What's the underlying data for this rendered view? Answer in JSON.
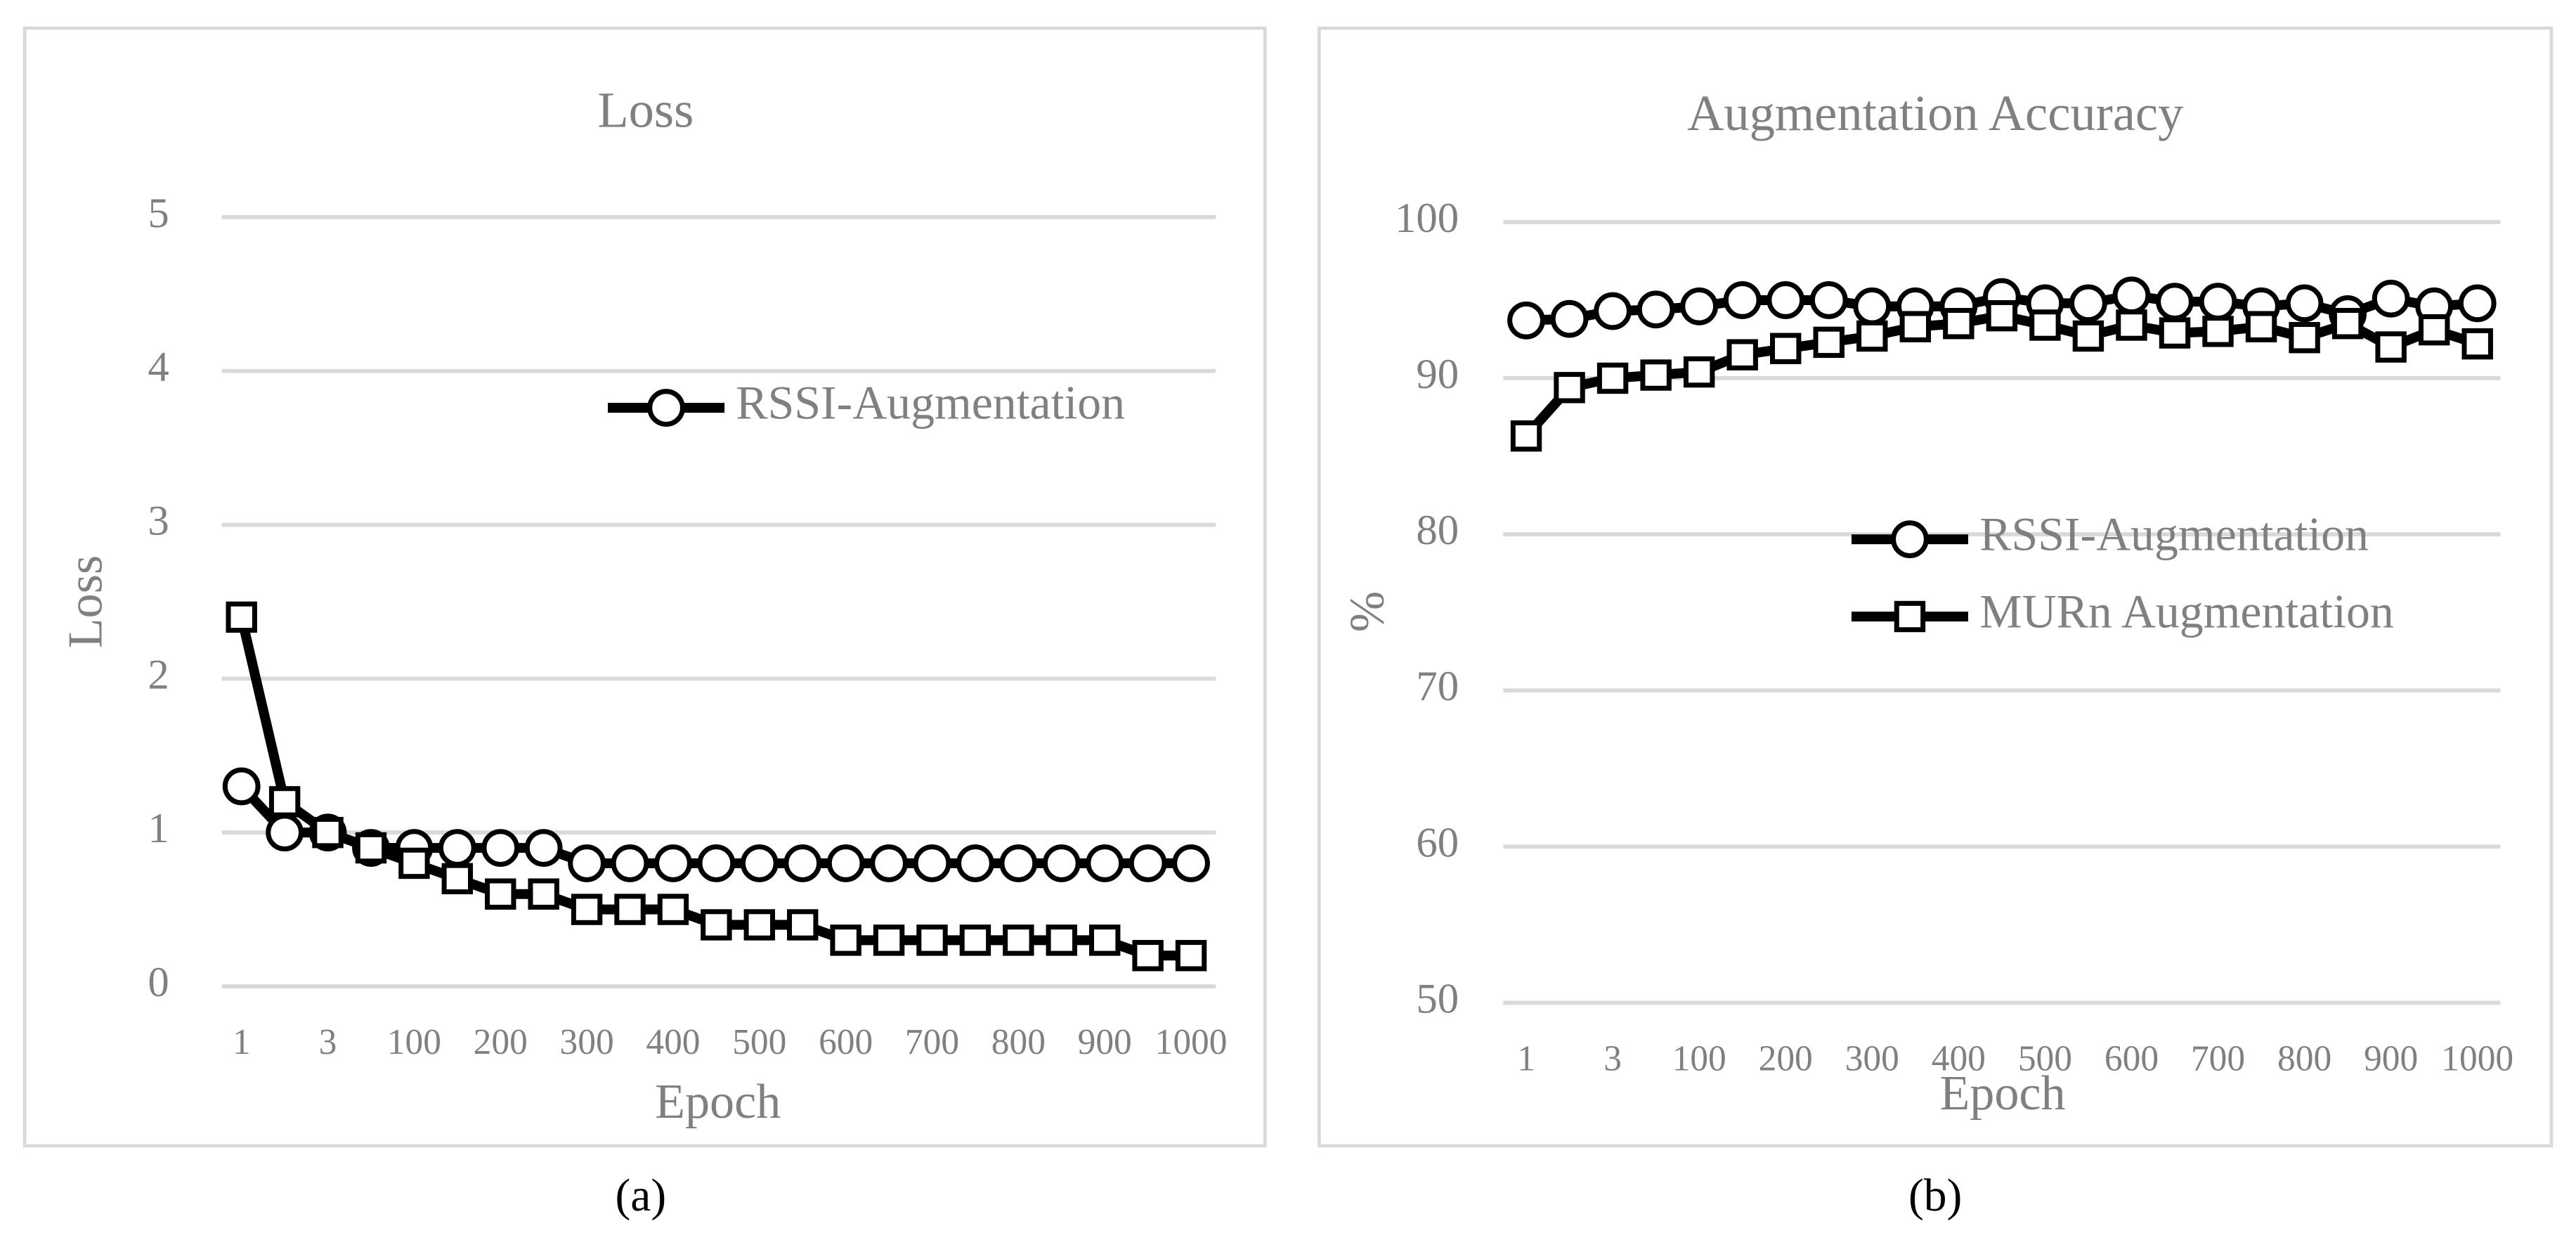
{
  "chart_data": [
    {
      "type": "line",
      "title": "Loss",
      "x_label": "Epoch",
      "y_label": "Loss",
      "caption": "(a)",
      "categories": [
        "1",
        null,
        "3",
        null,
        "100",
        null,
        "200",
        null,
        "300",
        null,
        "400",
        null,
        "500",
        null,
        "600",
        null,
        "700",
        null,
        "800",
        null,
        "900",
        null,
        "1000"
      ],
      "series": [
        {
          "name": "RSSI-Augmentation",
          "color": "#000000",
          "marker": "circle",
          "values": [
            1.3,
            1.0,
            1.0,
            0.9,
            0.9,
            0.9,
            0.9,
            0.9,
            0.8,
            0.8,
            0.8,
            0.8,
            0.8,
            0.8,
            0.8,
            0.8,
            0.8,
            0.8,
            0.8,
            0.8,
            0.8,
            0.8,
            0.8
          ]
        },
        {
          "color": "#000000",
          "marker": "square",
          "values": [
            2.4,
            1.2,
            1.0,
            0.9,
            0.8,
            0.7,
            0.6,
            0.6,
            0.5,
            0.5,
            0.5,
            0.4,
            0.4,
            0.4,
            0.3,
            0.3,
            0.3,
            0.3,
            0.3,
            0.3,
            0.3,
            0.2,
            0.2
          ]
        }
      ],
      "ylim": [
        0,
        5
      ],
      "yticks": [
        0,
        1,
        2,
        3,
        4,
        5
      ],
      "grid": true,
      "legend_position": "upper right"
    },
    {
      "type": "line",
      "title": "Augmentation Accuracy",
      "x_label": "Epoch",
      "y_label": "%",
      "caption": "(b)",
      "categories": [
        "1",
        null,
        "3",
        null,
        "100",
        null,
        "200",
        null,
        "300",
        null,
        "400",
        null,
        "500",
        null,
        "600",
        null,
        "700",
        null,
        "800",
        null,
        "900",
        null,
        "1000"
      ],
      "series": [
        {
          "name": "RSSI-Augmentation",
          "color": "#000000",
          "marker": "circle",
          "values": [
            93.7,
            93.8,
            94.3,
            94.4,
            94.6,
            95.0,
            95.0,
            95.0,
            94.6,
            94.6,
            94.6,
            95.2,
            94.8,
            94.8,
            95.3,
            94.9,
            94.9,
            94.6,
            94.8,
            94.1,
            95.1,
            94.6,
            94.8
          ]
        },
        {
          "name": "MURn Augmentation",
          "color": "#000000",
          "marker": "square",
          "values": [
            86.3,
            89.4,
            90.0,
            90.2,
            90.4,
            91.5,
            91.9,
            92.3,
            92.7,
            93.3,
            93.5,
            94.0,
            93.4,
            92.7,
            93.4,
            92.9,
            93.0,
            93.3,
            92.6,
            93.5,
            92.0,
            93.1,
            92.2
          ]
        }
      ],
      "ylim": [
        50,
        100
      ],
      "yticks": [
        50,
        60,
        70,
        80,
        90,
        100
      ],
      "grid": true,
      "legend_position": "center right"
    }
  ]
}
